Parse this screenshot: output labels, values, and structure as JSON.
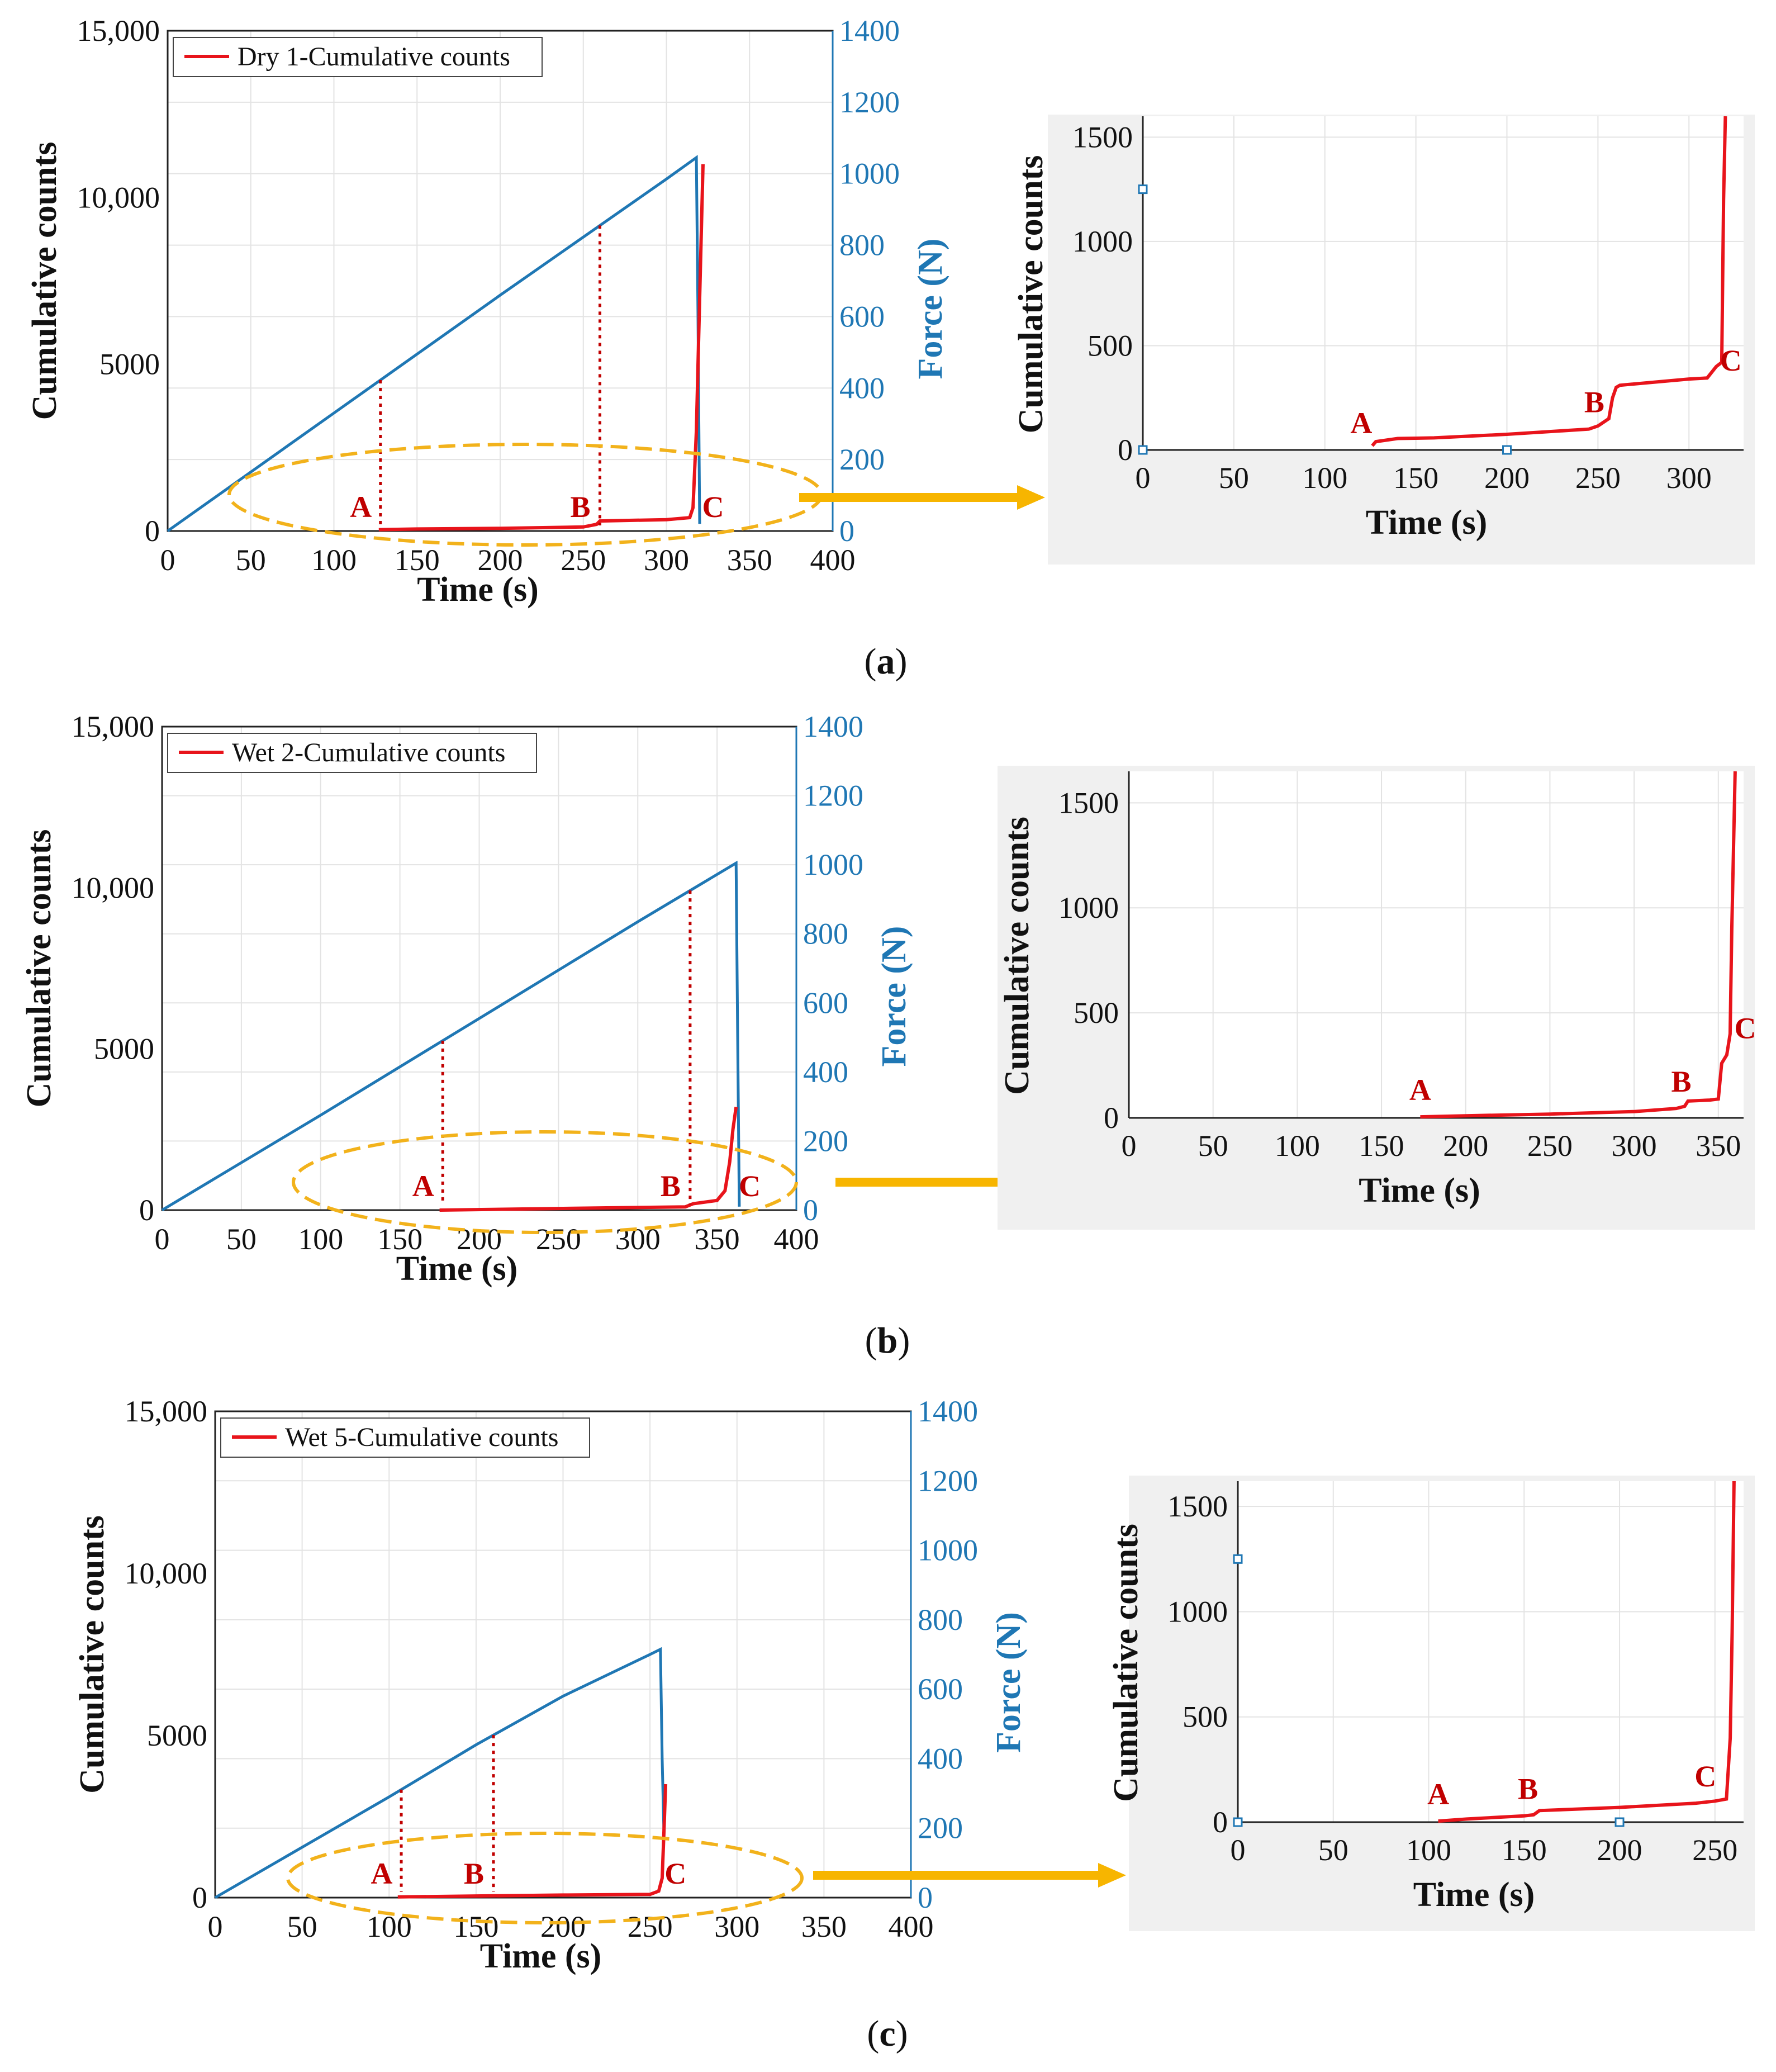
{
  "panels": [
    {
      "id": "a",
      "caption_open": "(",
      "caption_letter": "a",
      "caption_close": ")",
      "main": {
        "legend": "Dry 1-Cumulative counts",
        "xlabel": "Time (s)",
        "ylabel": "Cumulative counts",
        "y2label": "Force (N)",
        "x_ticks": [
          "0",
          "50",
          "100",
          "150",
          "200",
          "250",
          "300",
          "350",
          "400"
        ],
        "y_ticks": [
          "0",
          "5000",
          "10,000",
          "15,000"
        ],
        "y2_ticks": [
          "0",
          "200",
          "400",
          "600",
          "800",
          "1000",
          "1200",
          "1400"
        ]
      },
      "zoom": {
        "xlabel": "Time (s)",
        "ylabel": "Cumulative counts",
        "x_ticks": [
          "0",
          "50",
          "100",
          "150",
          "200",
          "250",
          "300"
        ],
        "y_ticks": [
          "0",
          "500",
          "1000",
          "1500"
        ]
      },
      "point_labels": [
        "A",
        "B",
        "C"
      ]
    },
    {
      "id": "b",
      "caption_open": "(",
      "caption_letter": "b",
      "caption_close": ")",
      "main": {
        "legend": "Wet 2-Cumulative counts",
        "xlabel": "Time (s)",
        "ylabel": "Cumulative counts",
        "y2label": "Force (N)",
        "x_ticks": [
          "0",
          "50",
          "100",
          "150",
          "200",
          "250",
          "300",
          "350",
          "400"
        ],
        "y_ticks": [
          "0",
          "5000",
          "10,000",
          "15,000"
        ],
        "y2_ticks": [
          "0",
          "200",
          "400",
          "600",
          "800",
          "1000",
          "1200",
          "1400"
        ]
      },
      "zoom": {
        "xlabel": "Time (s)",
        "ylabel": "Cumulative counts",
        "x_ticks": [
          "0",
          "50",
          "100",
          "150",
          "200",
          "250",
          "300",
          "350"
        ],
        "y_ticks": [
          "0",
          "500",
          "1000",
          "1500"
        ]
      },
      "point_labels": [
        "A",
        "B",
        "C"
      ]
    },
    {
      "id": "c",
      "caption_open": "(",
      "caption_letter": "c",
      "caption_close": ")",
      "main": {
        "legend": "Wet 5-Cumulative counts",
        "xlabel": "Time (s)",
        "ylabel": "Cumulative counts",
        "y2label": "Force (N)",
        "x_ticks": [
          "0",
          "50",
          "100",
          "150",
          "200",
          "250",
          "300",
          "350",
          "400"
        ],
        "y_ticks": [
          "0",
          "5000",
          "10,000",
          "15,000"
        ],
        "y2_ticks": [
          "0",
          "200",
          "400",
          "600",
          "800",
          "1000",
          "1200",
          "1400"
        ]
      },
      "zoom": {
        "xlabel": "Time (s)",
        "ylabel": "Cumulative counts",
        "x_ticks": [
          "0",
          "50",
          "100",
          "150",
          "200",
          "250"
        ],
        "y_ticks": [
          "0",
          "500",
          "1000",
          "1500"
        ]
      },
      "point_labels": [
        "A",
        "B",
        "C"
      ]
    }
  ],
  "colors": {
    "counts": "#e8141b",
    "force": "#1f77b4",
    "marker": "#c00000",
    "highlight": "#f2b21b",
    "arrow": "#f7b500",
    "zoom_bg": "#f0f0f0",
    "grid": "#e3e3e3"
  },
  "chart_data": [
    {
      "panel": "a",
      "type": "line",
      "title": "",
      "xlabel": "Time (s)",
      "ylabel": "Cumulative counts",
      "y2label": "Force (N)",
      "xlim": [
        0,
        400
      ],
      "ylim": [
        0,
        15000
      ],
      "y2lim": [
        0,
        1400
      ],
      "grid": true,
      "legend_position": "top-left",
      "series": [
        {
          "name": "Dry 1-Cumulative counts",
          "axis": "left",
          "x": [
            127,
            150,
            200,
            250,
            258,
            260,
            300,
            314,
            316,
            318,
            320,
            322
          ],
          "y": [
            40,
            60,
            80,
            120,
            200,
            300,
            340,
            400,
            700,
            3000,
            7000,
            11000
          ]
        },
        {
          "name": "Force",
          "axis": "right",
          "x": [
            0,
            100,
            200,
            300,
            318,
            319,
            320
          ],
          "y": [
            0,
            330,
            660,
            985,
            1045,
            600,
            20
          ]
        }
      ],
      "markers": [
        {
          "label": "A",
          "x": 128
        },
        {
          "label": "B",
          "x": 260
        },
        {
          "label": "C",
          "x": 318
        }
      ]
    },
    {
      "panel": "a-zoom",
      "type": "line",
      "xlabel": "Time (s)",
      "ylabel": "Cumulative counts",
      "xlim": [
        0,
        330
      ],
      "ylim": [
        0,
        1600
      ],
      "series": [
        {
          "name": "Dry 1-Cumulative counts",
          "x": [
            126,
            128,
            140,
            160,
            200,
            245,
            250,
            256,
            258,
            260,
            262,
            300,
            310,
            315,
            318,
            319,
            320
          ],
          "y": [
            20,
            40,
            55,
            58,
            75,
            100,
            115,
            150,
            250,
            300,
            310,
            340,
            345,
            400,
            420,
            1200,
            1600
          ]
        }
      ],
      "markers": [
        {
          "label": "A",
          "x": 120
        },
        {
          "label": "B",
          "x": 248
        },
        {
          "label": "C",
          "x": 323
        }
      ]
    },
    {
      "panel": "b",
      "type": "line",
      "xlabel": "Time (s)",
      "ylabel": "Cumulative counts",
      "y2label": "Force (N)",
      "xlim": [
        0,
        400
      ],
      "ylim": [
        0,
        15000
      ],
      "y2lim": [
        0,
        1400
      ],
      "grid": true,
      "legend_position": "top-left",
      "series": [
        {
          "name": "Wet 2-Cumulative counts",
          "axis": "left",
          "x": [
            175,
            250,
            330,
            335,
            350,
            355,
            358,
            360,
            362
          ],
          "y": [
            0,
            50,
            100,
            200,
            300,
            600,
            1500,
            2500,
            3200
          ]
        },
        {
          "name": "Force",
          "axis": "right",
          "x": [
            0,
            100,
            200,
            300,
            362,
            363,
            364
          ],
          "y": [
            0,
            275,
            555,
            835,
            1005,
            500,
            10
          ]
        }
      ],
      "markers": [
        {
          "label": "A",
          "x": 177
        },
        {
          "label": "B",
          "x": 333
        },
        {
          "label": "C",
          "x": 360
        }
      ]
    },
    {
      "panel": "b-zoom",
      "type": "line",
      "xlabel": "Time (s)",
      "ylabel": "Cumulative counts",
      "xlim": [
        0,
        365
      ],
      "ylim": [
        0,
        1650
      ],
      "series": [
        {
          "name": "Wet 2-Cumulative counts",
          "x": [
            173,
            200,
            250,
            300,
            325,
            330,
            332,
            345,
            350,
            352,
            355,
            357,
            358,
            360
          ],
          "y": [
            5,
            10,
            18,
            30,
            45,
            55,
            80,
            85,
            90,
            260,
            300,
            400,
            900,
            1650
          ]
        }
      ],
      "markers": [
        {
          "label": "A",
          "x": 173
        },
        {
          "label": "B",
          "x": 328
        },
        {
          "label": "C",
          "x": 366
        }
      ]
    },
    {
      "panel": "c",
      "type": "line",
      "xlabel": "Time (s)",
      "ylabel": "Cumulative counts",
      "y2label": "Force (N)",
      "xlim": [
        0,
        400
      ],
      "ylim": [
        0,
        15000
      ],
      "y2lim": [
        0,
        1400
      ],
      "grid": true,
      "legend_position": "top-left",
      "series": [
        {
          "name": "Wet 5-Cumulative counts",
          "axis": "left",
          "x": [
            105,
            150,
            200,
            250,
            255,
            257,
            258,
            259
          ],
          "y": [
            20,
            50,
            80,
            100,
            200,
            600,
            2000,
            3500
          ]
        },
        {
          "name": "Force",
          "axis": "right",
          "x": [
            0,
            100,
            150,
            200,
            250,
            256,
            257,
            258
          ],
          "y": [
            0,
            290,
            440,
            580,
            700,
            715,
            400,
            190
          ]
        }
      ],
      "markers": [
        {
          "label": "A",
          "x": 107
        },
        {
          "label": "B",
          "x": 160
        },
        {
          "label": "C",
          "x": 255
        }
      ]
    },
    {
      "panel": "c-zoom",
      "type": "line",
      "xlabel": "Time (s)",
      "ylabel": "Cumulative counts",
      "xlim": [
        0,
        265
      ],
      "ylim": [
        0,
        1620
      ],
      "series": [
        {
          "name": "Wet 5-Cumulative counts",
          "x": [
            105,
            120,
            150,
            155,
            158,
            200,
            240,
            250,
            256,
            258,
            259,
            260
          ],
          "y": [
            5,
            15,
            30,
            35,
            55,
            70,
            90,
            100,
            110,
            400,
            900,
            1620
          ]
        }
      ],
      "markers": [
        {
          "label": "A",
          "x": 105
        },
        {
          "label": "B",
          "x": 152
        },
        {
          "label": "C",
          "x": 245
        }
      ]
    }
  ]
}
